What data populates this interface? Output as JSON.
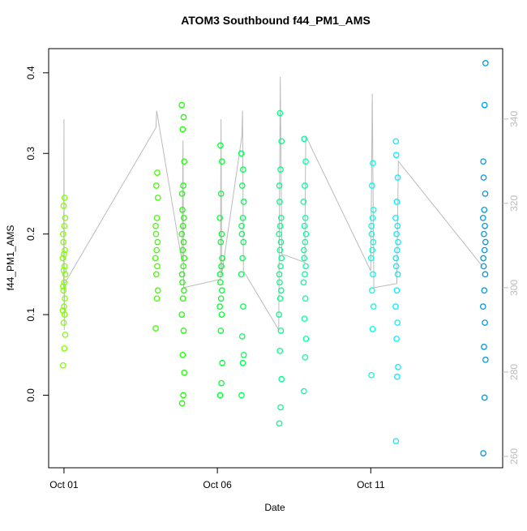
{
  "chart_data": {
    "type": "scatter",
    "title": "ATOM3 Southbound f44_PM1_AMS",
    "x_label": "Date",
    "y_label": "f44_PM1_AMS",
    "xlim": [
      0.5,
      15.3
    ],
    "ylim": [
      -0.09,
      0.43
    ],
    "y2lim": [
      257.3,
      356.7
    ],
    "xticks": [
      {
        "value": 1,
        "label": "Oct 01"
      },
      {
        "value": 6,
        "label": "Oct 06"
      },
      {
        "value": 11,
        "label": "Oct 11"
      }
    ],
    "yticks": [
      {
        "value": 0,
        "label": "0.0"
      },
      0.1,
      0.2,
      0.3,
      0.4
    ],
    "y2ticks": [
      260,
      280,
      300,
      320,
      340
    ],
    "series": [
      {
        "color": "#80ff00",
        "x": [
          0.97,
          1.01,
          1.04,
          0.99,
          1.02,
          0.96,
          1.0,
          1.03,
          0.98,
          0.97,
          1.01,
          1.04,
          0.99,
          1.02,
          0.96,
          1.0,
          1.03,
          0.98,
          0.97,
          1.01,
          1.04,
          0.99,
          1.02
        ],
        "values": [
          0.037,
          0.058,
          0.075,
          0.09,
          0.1,
          0.105,
          0.11,
          0.12,
          0.13,
          0.135,
          0.14,
          0.15,
          0.155,
          0.16,
          0.17,
          0.175,
          0.18,
          0.19,
          0.2,
          0.21,
          0.22,
          0.235,
          0.245
        ]
      },
      {
        "color": "#40ff00",
        "x": [
          3.99,
          4.03,
          4.06,
          4.01,
          4.04,
          3.98,
          4.02,
          4.05,
          4.0,
          3.99,
          4.03,
          4.06,
          4.01,
          4.04
        ],
        "values": [
          0.083,
          0.12,
          0.13,
          0.15,
          0.16,
          0.17,
          0.18,
          0.19,
          0.2,
          0.21,
          0.22,
          0.245,
          0.26,
          0.276
        ]
      },
      {
        "color": "#1aff00",
        "x": [
          4.85,
          4.89,
          4.92,
          4.87,
          4.9,
          4.84,
          4.88,
          4.91,
          4.86,
          4.85,
          4.89,
          4.92,
          4.87,
          4.9,
          4.84,
          4.88,
          4.91,
          4.86,
          4.85,
          4.89,
          4.92,
          4.87,
          4.9,
          4.84
        ],
        "values": [
          -0.01,
          0.0,
          0.028,
          0.05,
          0.08,
          0.1,
          0.12,
          0.13,
          0.14,
          0.15,
          0.16,
          0.17,
          0.18,
          0.19,
          0.2,
          0.21,
          0.22,
          0.23,
          0.25,
          0.26,
          0.29,
          0.33,
          0.345,
          0.36
        ]
      },
      {
        "color": "#00ff33",
        "x": [
          6.09,
          6.13,
          6.16,
          6.11,
          6.14,
          6.08,
          6.12,
          6.15,
          6.1,
          6.09,
          6.13,
          6.16,
          6.11,
          6.14,
          6.08,
          6.12,
          6.15,
          6.1
        ],
        "values": [
          0.0,
          0.015,
          0.04,
          0.08,
          0.1,
          0.11,
          0.12,
          0.13,
          0.14,
          0.15,
          0.16,
          0.17,
          0.19,
          0.2,
          0.22,
          0.25,
          0.29,
          0.31
        ]
      },
      {
        "color": "#00ff55",
        "x": [
          6.79,
          6.83,
          6.86,
          6.81,
          6.84,
          6.78,
          6.82,
          6.85,
          6.8,
          6.79,
          6.83,
          6.86,
          6.81,
          6.84,
          6.78
        ],
        "values": [
          0.0,
          0.04,
          0.05,
          0.073,
          0.11,
          0.15,
          0.17,
          0.19,
          0.2,
          0.21,
          0.22,
          0.24,
          0.26,
          0.28,
          0.3
        ]
      },
      {
        "color": "#00ff88",
        "x": [
          8.02,
          8.06,
          8.09,
          8.04,
          8.07,
          8.01,
          8.05,
          8.08,
          8.03,
          8.02,
          8.06,
          8.09,
          8.04,
          8.07,
          8.01,
          8.05,
          8.08,
          8.03,
          8.02,
          8.06,
          8.09,
          8.04
        ],
        "values": [
          -0.035,
          -0.015,
          0.02,
          0.055,
          0.08,
          0.1,
          0.12,
          0.13,
          0.14,
          0.15,
          0.16,
          0.17,
          0.18,
          0.19,
          0.2,
          0.21,
          0.22,
          0.24,
          0.26,
          0.28,
          0.315,
          0.35
        ]
      },
      {
        "color": "#00ffa0",
        "x": [
          8.82,
          8.86,
          8.89,
          8.84,
          8.87,
          8.81,
          8.85,
          8.88,
          8.83,
          8.82,
          8.86,
          8.89,
          8.84,
          8.87,
          8.81,
          8.85,
          8.88,
          8.83
        ],
        "values": [
          0.005,
          0.047,
          0.07,
          0.095,
          0.12,
          0.14,
          0.15,
          0.16,
          0.17,
          0.18,
          0.19,
          0.2,
          0.21,
          0.22,
          0.24,
          0.26,
          0.29,
          0.318
        ]
      },
      {
        "color": "#00ffe6",
        "x": [
          11.02,
          11.06,
          11.09,
          11.04,
          11.07,
          11.01,
          11.05,
          11.08,
          11.03,
          11.02,
          11.06,
          11.09,
          11.04,
          11.07
        ],
        "values": [
          0.025,
          0.082,
          0.11,
          0.13,
          0.15,
          0.17,
          0.18,
          0.19,
          0.2,
          0.21,
          0.22,
          0.23,
          0.26,
          0.288
        ]
      },
      {
        "color": "#00f0ff",
        "x": [
          11.82,
          11.86,
          11.89,
          11.84,
          11.87,
          11.81,
          11.85,
          11.88,
          11.83,
          11.82,
          11.86,
          11.89,
          11.84,
          11.87,
          11.81,
          11.85,
          11.88,
          11.83,
          11.82
        ],
        "values": [
          -0.057,
          0.023,
          0.035,
          0.07,
          0.09,
          0.11,
          0.13,
          0.15,
          0.16,
          0.17,
          0.18,
          0.19,
          0.2,
          0.21,
          0.22,
          0.24,
          0.27,
          0.298,
          0.315
        ]
      },
      {
        "color": "#0099e6",
        "x": [
          14.67,
          14.71,
          14.74,
          14.69,
          14.72,
          14.66,
          14.7,
          14.73,
          14.68,
          14.67,
          14.71,
          14.74,
          14.69,
          14.72,
          14.66,
          14.7,
          14.73,
          14.68,
          14.67,
          14.71,
          14.74
        ],
        "values": [
          -0.072,
          -0.003,
          0.044,
          0.06,
          0.09,
          0.11,
          0.13,
          0.15,
          0.16,
          0.17,
          0.18,
          0.19,
          0.2,
          0.21,
          0.22,
          0.23,
          0.25,
          0.27,
          0.29,
          0.36,
          0.412
        ]
      },
      {
        "type": "line",
        "axis": "y2",
        "color": "#bbbbbb",
        "x": [
          0.99,
          1.0,
          1.01,
          1.02,
          4.0,
          4.02,
          4.85,
          4.88,
          4.9,
          6.1,
          6.12,
          6.14,
          6.8,
          6.82,
          6.85,
          8.0,
          8.05,
          8.1,
          8.85,
          8.88,
          11.0,
          11.05,
          11.1,
          11.85,
          11.9,
          14.65
        ],
        "values": [
          300,
          340,
          290,
          301,
          338,
          342,
          306,
          335,
          300,
          302,
          340,
          303,
          336,
          342,
          304,
          290,
          350,
          308,
          306,
          336,
          304,
          346,
          300,
          301,
          330,
          305
        ]
      }
    ]
  }
}
